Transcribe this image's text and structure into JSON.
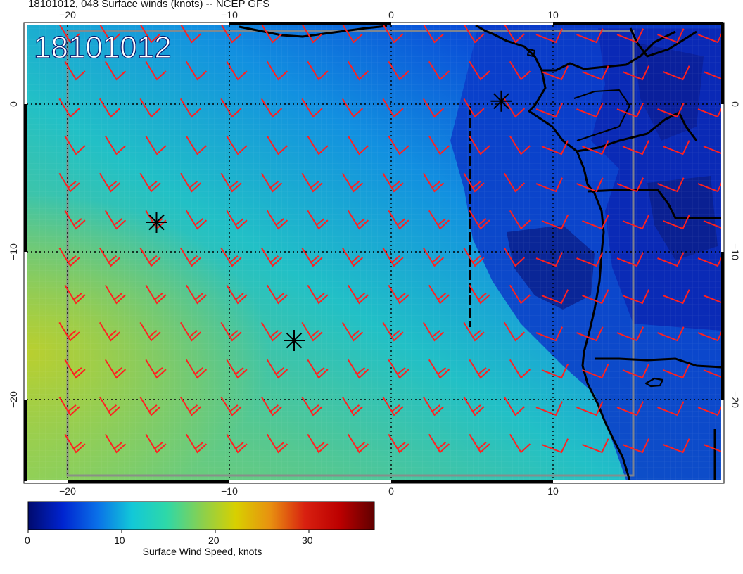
{
  "header": {
    "title": "18101012, 048 Surface winds (knots) -- NCEP GFS",
    "datetime_stamp": "18101012"
  },
  "map": {
    "lon_ticks": [
      "−20",
      "−10",
      "0",
      "10"
    ],
    "lat_ticks": [
      "0",
      "−10",
      "−20"
    ],
    "lon_range": [
      -22.5,
      20
    ],
    "lat_range": [
      -25,
      5
    ],
    "wind_barb_color": "#ff2020",
    "coast_color": "#000000",
    "markers": [
      {
        "name": "asterisk",
        "lon": -14.5,
        "lat": -8
      },
      {
        "name": "asterisk",
        "lon": -6.0,
        "lat": -16
      },
      {
        "name": "asterisk",
        "lon": 6.8,
        "lat": 0.2
      }
    ]
  },
  "colorbar": {
    "title": "Surface Wind Speed, knots",
    "tick_labels": [
      "0",
      "10",
      "20",
      "30"
    ],
    "tick_values": [
      0,
      10,
      20,
      30
    ],
    "range": [
      0,
      37
    ],
    "colors": [
      "#000a6e",
      "#0024d0",
      "#0a70e8",
      "#12c8d8",
      "#2ed8a8",
      "#88d050",
      "#d8d000",
      "#e89010",
      "#d82010",
      "#bc0000",
      "#600000"
    ]
  }
}
